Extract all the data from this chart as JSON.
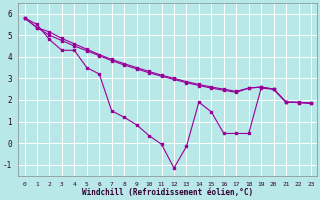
{
  "background_color": "#b8e8e8",
  "grid_color": "#ffffff",
  "line_color": "#990099",
  "x_label": "Windchill (Refroidissement éolien,°C)",
  "ylim": [
    -1.5,
    6.5
  ],
  "xlim": [
    -0.5,
    23.5
  ],
  "yticks": [
    -1,
    0,
    1,
    2,
    3,
    4,
    5,
    6
  ],
  "xticks": [
    0,
    1,
    2,
    3,
    4,
    5,
    6,
    7,
    8,
    9,
    10,
    11,
    12,
    13,
    14,
    15,
    16,
    17,
    18,
    19,
    20,
    21,
    22,
    23
  ],
  "series1_x": [
    0,
    1,
    2,
    3,
    4,
    5,
    6,
    7,
    8,
    9,
    10,
    11,
    12,
    13,
    14,
    15,
    16,
    17,
    18,
    19,
    20,
    21,
    22,
    23
  ],
  "series1": [
    5.8,
    5.5,
    4.8,
    4.3,
    4.3,
    3.5,
    3.2,
    1.5,
    1.2,
    0.85,
    0.35,
    -0.05,
    -1.15,
    -0.15,
    1.9,
    1.45,
    0.45,
    0.45,
    0.45,
    2.55,
    2.5,
    1.9,
    1.9,
    1.85
  ],
  "series2_x": [
    0,
    1,
    2,
    3,
    4,
    5,
    6,
    7,
    8,
    9,
    10,
    11,
    12,
    13,
    14,
    15,
    16,
    17,
    18,
    19,
    20,
    21,
    22,
    23
  ],
  "series2": [
    5.8,
    5.35,
    5.15,
    4.85,
    4.6,
    4.35,
    4.1,
    3.88,
    3.68,
    3.5,
    3.32,
    3.15,
    3.0,
    2.85,
    2.72,
    2.6,
    2.5,
    2.4,
    2.55,
    2.6,
    2.5,
    1.9,
    1.88,
    1.85
  ],
  "series3_x": [
    0,
    1,
    2,
    3,
    4,
    5,
    6,
    7,
    8,
    9,
    10,
    11,
    12,
    13,
    14,
    15,
    16,
    17,
    18,
    19,
    20,
    21,
    22,
    23
  ],
  "series3": [
    5.8,
    5.35,
    5.0,
    4.75,
    4.5,
    4.28,
    4.05,
    3.82,
    3.62,
    3.44,
    3.26,
    3.1,
    2.95,
    2.8,
    2.67,
    2.55,
    2.45,
    2.35,
    2.55,
    2.6,
    2.5,
    1.9,
    1.88,
    1.85
  ]
}
